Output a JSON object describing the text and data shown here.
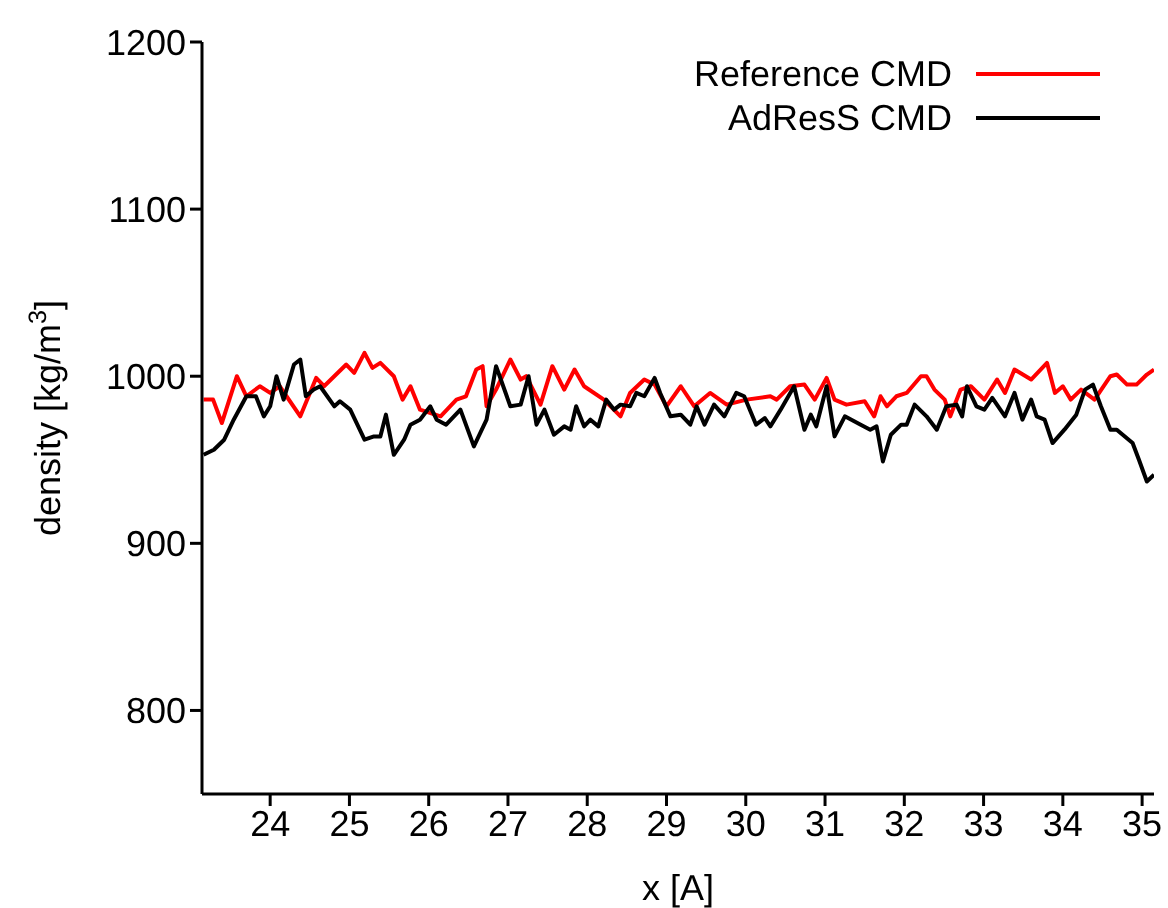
{
  "chart_data": {
    "type": "line",
    "xlabel": "x [A]",
    "ylabel": "density [kg/m$^{3}$]",
    "xlim": [
      23.14,
      35.15
    ],
    "ylim": [
      750,
      1200
    ],
    "xticks": [
      24,
      25,
      26,
      27,
      28,
      29,
      30,
      31,
      32,
      33,
      34,
      35
    ],
    "yticks": [
      800,
      900,
      1000,
      1100,
      1200
    ],
    "legend": "top right",
    "marker": "none",
    "line_style": "solid",
    "series": [
      {
        "name": "Reference CMD",
        "color": "#ff0000",
        "x": [
          23.16,
          23.28,
          23.39,
          23.58,
          23.7,
          23.87,
          24.0,
          24.12,
          24.38,
          24.58,
          24.68,
          24.96,
          25.06,
          25.19,
          25.29,
          25.39,
          25.56,
          25.67,
          25.77,
          25.89,
          26.15,
          26.35,
          26.47,
          26.6,
          26.68,
          26.73,
          26.85,
          27.03,
          27.16,
          27.23,
          27.41,
          27.56,
          27.71,
          27.84,
          27.96,
          28.21,
          28.42,
          28.54,
          28.72,
          28.85,
          29.0,
          29.18,
          29.35,
          29.55,
          29.76,
          30.01,
          30.31,
          30.39,
          30.56,
          30.74,
          30.87,
          31.02,
          31.12,
          31.27,
          31.5,
          31.62,
          31.7,
          31.78,
          31.9,
          32.03,
          32.21,
          32.28,
          32.38,
          32.51,
          32.58,
          32.71,
          32.84,
          33.01,
          33.17,
          33.27,
          33.39,
          33.6,
          33.8,
          33.9,
          34.0,
          34.1,
          34.23,
          34.4,
          34.6,
          34.68,
          34.81,
          34.93,
          35.06,
          35.15
        ],
        "values": [
          986,
          986,
          972,
          1000,
          988,
          994,
          990,
          994,
          976,
          999,
          994,
          1007,
          1002,
          1014,
          1005,
          1008,
          1000,
          986,
          994,
          980,
          976,
          986,
          988,
          1004,
          1006,
          982,
          992,
          1010,
          998,
          1000,
          983,
          1006,
          992,
          1004,
          994,
          986,
          976,
          990,
          998,
          995,
          982,
          994,
          982,
          990,
          983,
          986,
          988,
          986,
          994,
          995,
          986,
          999,
          986,
          983,
          985,
          976,
          988,
          982,
          988,
          990,
          1000,
          1000,
          992,
          986,
          976,
          992,
          994,
          986,
          998,
          990,
          1004,
          998,
          1008,
          990,
          994,
          986,
          992,
          986,
          1000,
          1001,
          995,
          995,
          1001,
          1004
        ]
      },
      {
        "name": "AdResS CMD",
        "color": "#000000",
        "x": [
          23.16,
          23.29,
          23.42,
          23.54,
          23.7,
          23.82,
          23.92,
          24.0,
          24.08,
          24.17,
          24.3,
          24.38,
          24.45,
          24.55,
          24.63,
          24.81,
          24.88,
          25.01,
          25.19,
          25.31,
          25.39,
          25.46,
          25.56,
          25.69,
          25.77,
          25.89,
          26.02,
          26.1,
          26.22,
          26.4,
          26.57,
          26.73,
          26.85,
          27.03,
          27.16,
          27.26,
          27.36,
          27.46,
          27.58,
          27.71,
          27.79,
          27.86,
          27.96,
          28.04,
          28.14,
          28.24,
          28.34,
          28.42,
          28.54,
          28.62,
          28.72,
          28.85,
          28.92,
          29.05,
          29.18,
          29.3,
          29.38,
          29.48,
          29.6,
          29.73,
          29.88,
          29.98,
          30.13,
          30.24,
          30.31,
          30.44,
          30.61,
          30.74,
          30.82,
          30.89,
          31.02,
          31.12,
          31.25,
          31.45,
          31.57,
          31.65,
          31.73,
          31.83,
          31.96,
          32.03,
          32.13,
          32.28,
          32.41,
          32.53,
          32.66,
          32.73,
          32.79,
          32.91,
          33.01,
          33.11,
          33.27,
          33.39,
          33.49,
          33.6,
          33.67,
          33.77,
          33.87,
          34.02,
          34.17,
          34.28,
          34.38,
          34.48,
          34.6,
          34.68,
          34.88,
          34.96,
          35.06,
          35.15
        ],
        "values": [
          953,
          956,
          962,
          974,
          988,
          988,
          976,
          982,
          1000,
          986,
          1007,
          1010,
          988,
          992,
          994,
          982,
          985,
          980,
          962,
          964,
          964,
          977,
          953,
          962,
          971,
          974,
          982,
          974,
          971,
          980,
          958,
          974,
          1006,
          982,
          983,
          1000,
          971,
          980,
          965,
          970,
          968,
          982,
          970,
          974,
          970,
          986,
          980,
          983,
          982,
          990,
          988,
          999,
          990,
          976,
          977,
          971,
          982,
          971,
          983,
          976,
          990,
          988,
          971,
          975,
          970,
          980,
          994,
          968,
          977,
          970,
          994,
          964,
          976,
          971,
          968,
          970,
          949,
          965,
          971,
          971,
          983,
          976,
          968,
          982,
          983,
          976,
          994,
          982,
          980,
          987,
          976,
          990,
          974,
          986,
          976,
          974,
          960,
          968,
          977,
          992,
          995,
          982,
          968,
          968,
          960,
          950,
          937,
          941
        ]
      }
    ]
  }
}
